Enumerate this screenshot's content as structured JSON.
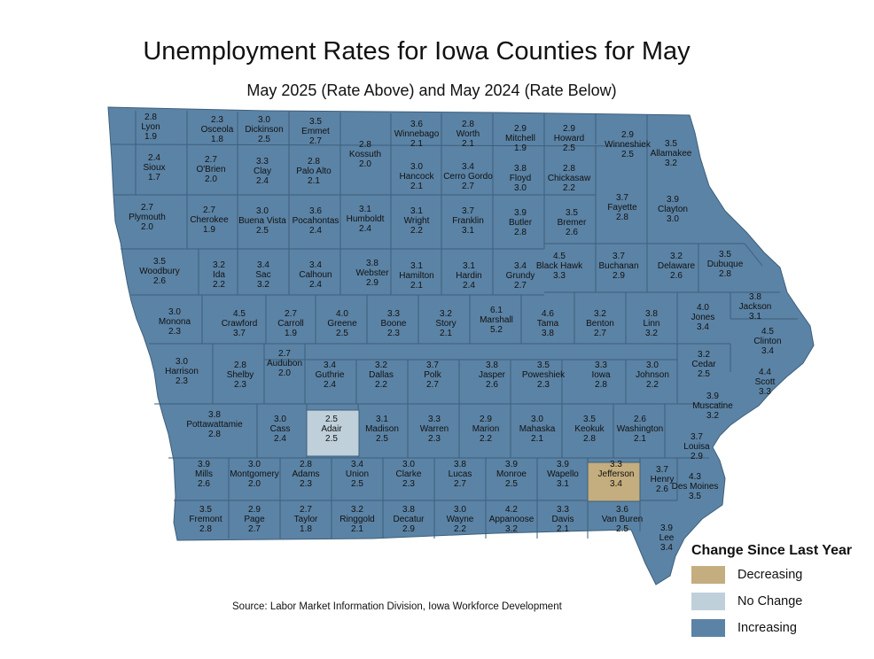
{
  "title": "Unemployment Rates for Iowa Counties for May",
  "subtitle": "May 2025 (Rate Above) and May 2024 (Rate Below)",
  "source": "Source: Labor Market Information Division, Iowa Workforce Development",
  "legend": {
    "title": "Change Since Last Year",
    "items": [
      {
        "label": "Decreasing",
        "color": "#c4ad7e"
      },
      {
        "label": "No Change",
        "color": "#bfd0db"
      },
      {
        "label": "Increasing",
        "color": "#5b83a5"
      }
    ]
  },
  "colors": {
    "increasing": "#5b83a5",
    "decreasing": "#c4ad7e",
    "no_change": "#bfd0db",
    "border": "#3e5f7c"
  },
  "counties": [
    {
      "name": "Lyon",
      "r2025": "2.8",
      "r2024": "1.9",
      "change": "increasing"
    },
    {
      "name": "Osceola",
      "r2025": "2.3",
      "r2024": "1.8",
      "change": "increasing"
    },
    {
      "name": "Dickinson",
      "r2025": "3.0",
      "r2024": "2.5",
      "change": "increasing"
    },
    {
      "name": "Emmet",
      "r2025": "3.5",
      "r2024": "2.7",
      "change": "increasing"
    },
    {
      "name": "Kossuth",
      "r2025": "2.8",
      "r2024": "2.0",
      "change": "increasing"
    },
    {
      "name": "Winnebago",
      "r2025": "3.6",
      "r2024": "2.1",
      "change": "increasing"
    },
    {
      "name": "Worth",
      "r2025": "2.8",
      "r2024": "2.1",
      "change": "increasing"
    },
    {
      "name": "Mitchell",
      "r2025": "2.9",
      "r2024": "1.9",
      "change": "increasing"
    },
    {
      "name": "Howard",
      "r2025": "2.9",
      "r2024": "2.5",
      "change": "increasing"
    },
    {
      "name": "Winneshiek",
      "r2025": "2.9",
      "r2024": "2.5",
      "change": "increasing"
    },
    {
      "name": "Allamakee",
      "r2025": "3.5",
      "r2024": "3.2",
      "change": "increasing"
    },
    {
      "name": "Sioux",
      "r2025": "2.4",
      "r2024": "1.7",
      "change": "increasing"
    },
    {
      "name": "O'Brien",
      "r2025": "2.7",
      "r2024": "2.0",
      "change": "increasing"
    },
    {
      "name": "Clay",
      "r2025": "3.3",
      "r2024": "2.4",
      "change": "increasing"
    },
    {
      "name": "Palo Alto",
      "r2025": "2.8",
      "r2024": "2.1",
      "change": "increasing"
    },
    {
      "name": "Hancock",
      "r2025": "3.0",
      "r2024": "2.1",
      "change": "increasing"
    },
    {
      "name": "Cerro Gordo",
      "r2025": "3.4",
      "r2024": "2.7",
      "change": "increasing"
    },
    {
      "name": "Floyd",
      "r2025": "3.8",
      "r2024": "3.0",
      "change": "increasing"
    },
    {
      "name": "Chickasaw",
      "r2025": "2.8",
      "r2024": "2.2",
      "change": "increasing"
    },
    {
      "name": "Fayette",
      "r2025": "3.7",
      "r2024": "2.8",
      "change": "increasing"
    },
    {
      "name": "Clayton",
      "r2025": "3.9",
      "r2024": "3.0",
      "change": "increasing"
    },
    {
      "name": "Plymouth",
      "r2025": "2.7",
      "r2024": "2.0",
      "change": "increasing"
    },
    {
      "name": "Cherokee",
      "r2025": "2.7",
      "r2024": "1.9",
      "change": "increasing"
    },
    {
      "name": "Buena Vista",
      "r2025": "3.0",
      "r2024": "2.5",
      "change": "increasing"
    },
    {
      "name": "Pocahontas",
      "r2025": "3.6",
      "r2024": "2.4",
      "change": "increasing"
    },
    {
      "name": "Humboldt",
      "r2025": "3.1",
      "r2024": "2.4",
      "change": "increasing"
    },
    {
      "name": "Wright",
      "r2025": "3.1",
      "r2024": "2.2",
      "change": "increasing"
    },
    {
      "name": "Franklin",
      "r2025": "3.7",
      "r2024": "3.1",
      "change": "increasing"
    },
    {
      "name": "Butler",
      "r2025": "3.9",
      "r2024": "2.8",
      "change": "increasing"
    },
    {
      "name": "Bremer",
      "r2025": "3.5",
      "r2024": "2.6",
      "change": "increasing"
    },
    {
      "name": "Black Hawk",
      "r2025": "4.5",
      "r2024": "3.3",
      "change": "increasing"
    },
    {
      "name": "Buchanan",
      "r2025": "3.7",
      "r2024": "2.9",
      "change": "increasing"
    },
    {
      "name": "Delaware",
      "r2025": "3.2",
      "r2024": "2.6",
      "change": "increasing"
    },
    {
      "name": "Dubuque",
      "r2025": "3.5",
      "r2024": "2.8",
      "change": "increasing"
    },
    {
      "name": "Woodbury",
      "r2025": "3.5",
      "r2024": "2.6",
      "change": "increasing"
    },
    {
      "name": "Ida",
      "r2025": "3.2",
      "r2024": "2.2",
      "change": "increasing"
    },
    {
      "name": "Sac",
      "r2025": "3.4",
      "r2024": "3.2",
      "change": "increasing"
    },
    {
      "name": "Calhoun",
      "r2025": "3.4",
      "r2024": "2.4",
      "change": "increasing"
    },
    {
      "name": "Webster",
      "r2025": "3.8",
      "r2024": "2.9",
      "change": "increasing"
    },
    {
      "name": "Hamilton",
      "r2025": "3.1",
      "r2024": "2.1",
      "change": "increasing"
    },
    {
      "name": "Hardin",
      "r2025": "3.1",
      "r2024": "2.4",
      "change": "increasing"
    },
    {
      "name": "Grundy",
      "r2025": "3.4",
      "r2024": "2.7",
      "change": "increasing"
    },
    {
      "name": "Monona",
      "r2025": "3.0",
      "r2024": "2.3",
      "change": "increasing"
    },
    {
      "name": "Crawford",
      "r2025": "4.5",
      "r2024": "3.7",
      "change": "increasing"
    },
    {
      "name": "Carroll",
      "r2025": "2.7",
      "r2024": "1.9",
      "change": "increasing"
    },
    {
      "name": "Greene",
      "r2025": "4.0",
      "r2024": "2.5",
      "change": "increasing"
    },
    {
      "name": "Boone",
      "r2025": "3.3",
      "r2024": "2.3",
      "change": "increasing"
    },
    {
      "name": "Story",
      "r2025": "3.2",
      "r2024": "2.1",
      "change": "increasing"
    },
    {
      "name": "Marshall",
      "r2025": "6.1",
      "r2024": "5.2",
      "change": "increasing"
    },
    {
      "name": "Tama",
      "r2025": "4.6",
      "r2024": "3.8",
      "change": "increasing"
    },
    {
      "name": "Benton",
      "r2025": "3.2",
      "r2024": "2.7",
      "change": "increasing"
    },
    {
      "name": "Linn",
      "r2025": "3.8",
      "r2024": "3.2",
      "change": "increasing"
    },
    {
      "name": "Jones",
      "r2025": "4.0",
      "r2024": "3.4",
      "change": "increasing"
    },
    {
      "name": "Jackson",
      "r2025": "3.8",
      "r2024": "3.1",
      "change": "increasing"
    },
    {
      "name": "Clinton",
      "r2025": "4.5",
      "r2024": "3.4",
      "change": "increasing"
    },
    {
      "name": "Harrison",
      "r2025": "3.0",
      "r2024": "2.3",
      "change": "increasing"
    },
    {
      "name": "Shelby",
      "r2025": "2.8",
      "r2024": "2.3",
      "change": "increasing"
    },
    {
      "name": "Audubon",
      "r2025": "2.7",
      "r2024": "2.0",
      "change": "increasing"
    },
    {
      "name": "Guthrie",
      "r2025": "3.4",
      "r2024": "2.4",
      "change": "increasing"
    },
    {
      "name": "Dallas",
      "r2025": "3.2",
      "r2024": "2.2",
      "change": "increasing"
    },
    {
      "name": "Polk",
      "r2025": "3.7",
      "r2024": "2.7",
      "change": "increasing"
    },
    {
      "name": "Jasper",
      "r2025": "3.8",
      "r2024": "2.6",
      "change": "increasing"
    },
    {
      "name": "Poweshiek",
      "r2025": "3.5",
      "r2024": "2.3",
      "change": "increasing"
    },
    {
      "name": "Iowa",
      "r2025": "3.3",
      "r2024": "2.8",
      "change": "increasing"
    },
    {
      "name": "Johnson",
      "r2025": "3.0",
      "r2024": "2.2",
      "change": "increasing"
    },
    {
      "name": "Cedar",
      "r2025": "3.2",
      "r2024": "2.5",
      "change": "increasing"
    },
    {
      "name": "Scott",
      "r2025": "4.4",
      "r2024": "3.3",
      "change": "increasing"
    },
    {
      "name": "Muscatine",
      "r2025": "3.9",
      "r2024": "3.2",
      "change": "increasing"
    },
    {
      "name": "Pottawattamie",
      "r2025": "3.8",
      "r2024": "2.8",
      "change": "increasing"
    },
    {
      "name": "Cass",
      "r2025": "3.0",
      "r2024": "2.4",
      "change": "increasing"
    },
    {
      "name": "Adair",
      "r2025": "2.5",
      "r2024": "2.5",
      "change": "no_change"
    },
    {
      "name": "Madison",
      "r2025": "3.1",
      "r2024": "2.5",
      "change": "increasing"
    },
    {
      "name": "Warren",
      "r2025": "3.3",
      "r2024": "2.3",
      "change": "increasing"
    },
    {
      "name": "Marion",
      "r2025": "2.9",
      "r2024": "2.2",
      "change": "increasing"
    },
    {
      "name": "Mahaska",
      "r2025": "3.0",
      "r2024": "2.1",
      "change": "increasing"
    },
    {
      "name": "Keokuk",
      "r2025": "3.5",
      "r2024": "2.8",
      "change": "increasing"
    },
    {
      "name": "Washington",
      "r2025": "2.6",
      "r2024": "2.1",
      "change": "increasing"
    },
    {
      "name": "Louisa",
      "r2025": "3.7",
      "r2024": "2.9",
      "change": "increasing"
    },
    {
      "name": "Mills",
      "r2025": "3.9",
      "r2024": "2.6",
      "change": "increasing"
    },
    {
      "name": "Montgomery",
      "r2025": "3.0",
      "r2024": "2.0",
      "change": "increasing"
    },
    {
      "name": "Adams",
      "r2025": "2.8",
      "r2024": "2.3",
      "change": "increasing"
    },
    {
      "name": "Union",
      "r2025": "3.4",
      "r2024": "2.5",
      "change": "increasing"
    },
    {
      "name": "Clarke",
      "r2025": "3.0",
      "r2024": "2.3",
      "change": "increasing"
    },
    {
      "name": "Lucas",
      "r2025": "3.8",
      "r2024": "2.7",
      "change": "increasing"
    },
    {
      "name": "Monroe",
      "r2025": "3.9",
      "r2024": "2.5",
      "change": "increasing"
    },
    {
      "name": "Wapello",
      "r2025": "3.9",
      "r2024": "3.1",
      "change": "increasing"
    },
    {
      "name": "Jefferson",
      "r2025": "3.3",
      "r2024": "3.4",
      "change": "decreasing"
    },
    {
      "name": "Henry",
      "r2025": "3.7",
      "r2024": "2.6",
      "change": "increasing"
    },
    {
      "name": "Des Moines",
      "r2025": "4.3",
      "r2024": "3.5",
      "change": "increasing"
    },
    {
      "name": "Fremont",
      "r2025": "3.5",
      "r2024": "2.8",
      "change": "increasing"
    },
    {
      "name": "Page",
      "r2025": "2.9",
      "r2024": "2.7",
      "change": "increasing"
    },
    {
      "name": "Taylor",
      "r2025": "2.7",
      "r2024": "1.8",
      "change": "increasing"
    },
    {
      "name": "Ringgold",
      "r2025": "3.2",
      "r2024": "2.1",
      "change": "increasing"
    },
    {
      "name": "Decatur",
      "r2025": "3.8",
      "r2024": "2.9",
      "change": "increasing"
    },
    {
      "name": "Wayne",
      "r2025": "3.0",
      "r2024": "2.2",
      "change": "increasing"
    },
    {
      "name": "Appanoose",
      "r2025": "4.2",
      "r2024": "3.2",
      "change": "increasing"
    },
    {
      "name": "Davis",
      "r2025": "3.3",
      "r2024": "2.1",
      "change": "increasing"
    },
    {
      "name": "Van Buren",
      "r2025": "3.6",
      "r2024": "2.5",
      "change": "increasing"
    },
    {
      "name": "Lee",
      "r2025": "3.9",
      "r2024": "3.4",
      "change": "increasing"
    }
  ]
}
